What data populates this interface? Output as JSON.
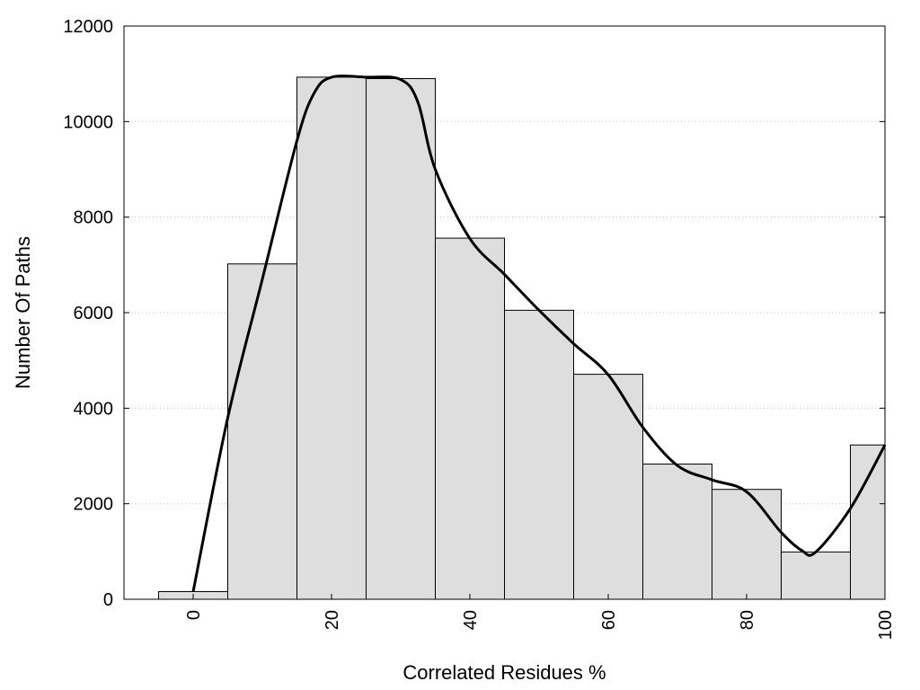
{
  "chart_data": {
    "type": "bar",
    "xlabel": "Correlated Residues %",
    "ylabel": "Number Of Paths",
    "xlim": [
      -10,
      100
    ],
    "ylim": [
      0,
      12000
    ],
    "x_ticks": [
      "0",
      "20",
      "40",
      "60",
      "80",
      "100"
    ],
    "y_ticks": [
      "0",
      "2000",
      "4000",
      "6000",
      "8000",
      "10000",
      "12000"
    ],
    "grid": "horizontal-dotted",
    "legend": "none",
    "bar_color": "#dedede",
    "bar_edge_color": "#000000",
    "bin_width": 10,
    "bars": [
      {
        "x": 0,
        "value": 160
      },
      {
        "x": 10,
        "value": 7020
      },
      {
        "x": 20,
        "value": 10930
      },
      {
        "x": 30,
        "value": 10900
      },
      {
        "x": 40,
        "value": 7560
      },
      {
        "x": 50,
        "value": 6050
      },
      {
        "x": 60,
        "value": 4710
      },
      {
        "x": 70,
        "value": 2830
      },
      {
        "x": 80,
        "value": 2300
      },
      {
        "x": 90,
        "value": 990
      },
      {
        "x": 100,
        "value": 3230
      }
    ],
    "curve": {
      "type": "line",
      "color": "#000000",
      "points": [
        {
          "x": 0,
          "y": 160
        },
        {
          "x": 5,
          "y": 3800
        },
        {
          "x": 10,
          "y": 6700
        },
        {
          "x": 15,
          "y": 9600
        },
        {
          "x": 17.5,
          "y": 10600
        },
        {
          "x": 20,
          "y": 10930
        },
        {
          "x": 25,
          "y": 10930
        },
        {
          "x": 30,
          "y": 10880
        },
        {
          "x": 32.5,
          "y": 10400
        },
        {
          "x": 35,
          "y": 9000
        },
        {
          "x": 40,
          "y": 7550
        },
        {
          "x": 45,
          "y": 6800
        },
        {
          "x": 50,
          "y": 6050
        },
        {
          "x": 55,
          "y": 5350
        },
        {
          "x": 60,
          "y": 4700
        },
        {
          "x": 65,
          "y": 3600
        },
        {
          "x": 70,
          "y": 2800
        },
        {
          "x": 75,
          "y": 2500
        },
        {
          "x": 80,
          "y": 2250
        },
        {
          "x": 85,
          "y": 1400
        },
        {
          "x": 88,
          "y": 1020
        },
        {
          "x": 90,
          "y": 990
        },
        {
          "x": 95,
          "y": 1900
        },
        {
          "x": 100,
          "y": 3230
        }
      ]
    }
  }
}
